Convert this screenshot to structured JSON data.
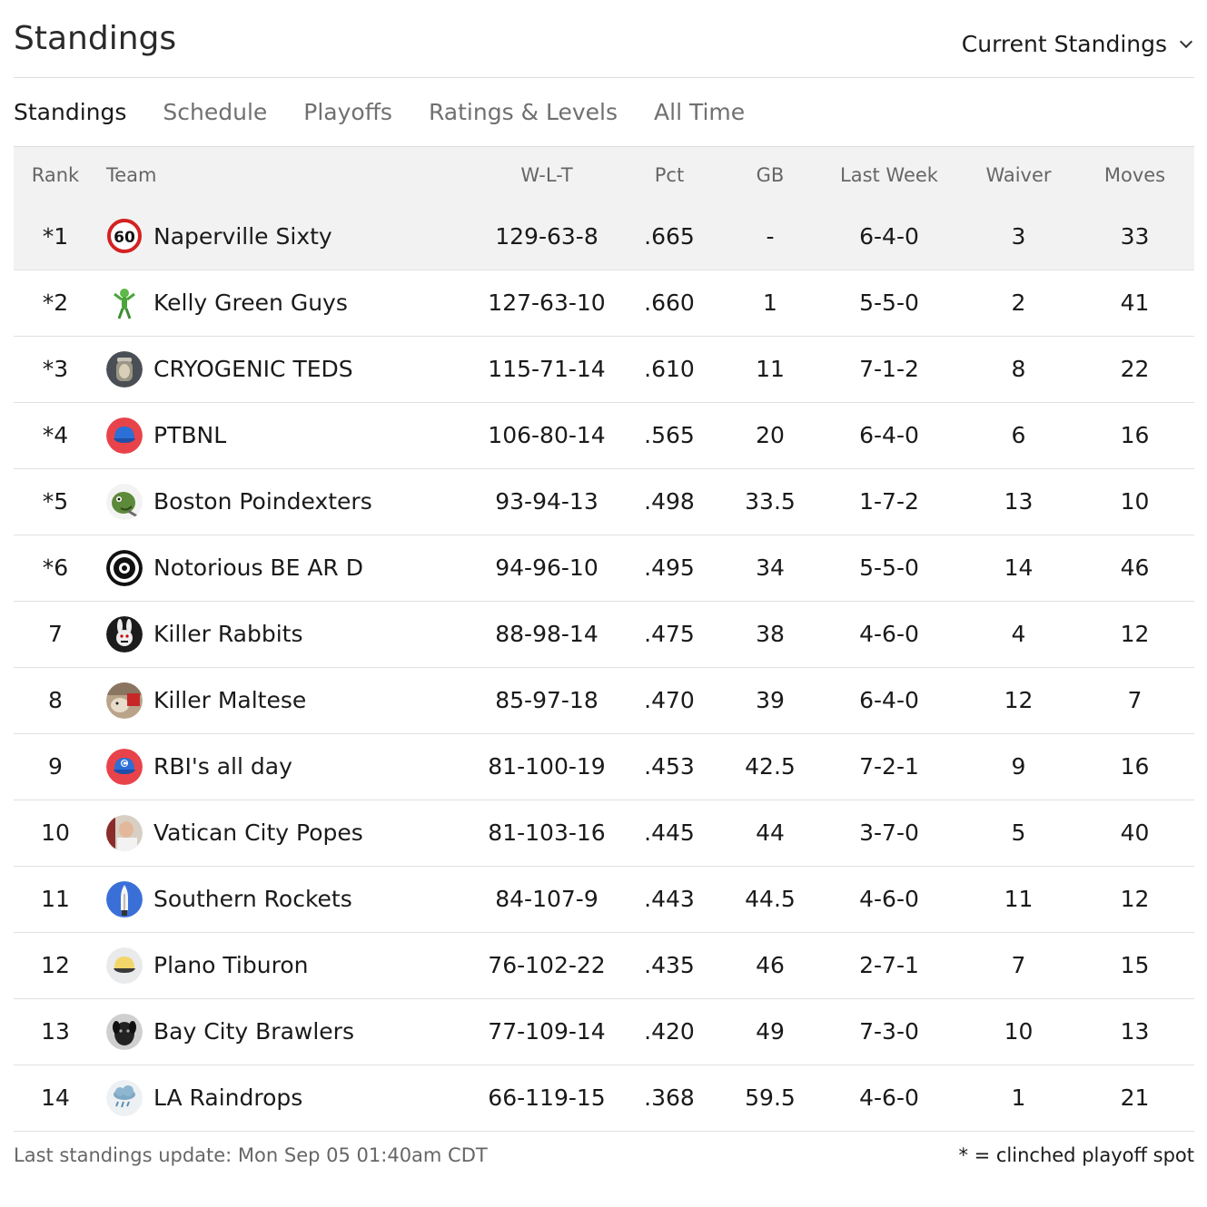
{
  "header": {
    "title": "Standings",
    "view_selector": "Current Standings"
  },
  "tabs": [
    {
      "label": "Standings",
      "active": true
    },
    {
      "label": "Schedule",
      "active": false
    },
    {
      "label": "Playoffs",
      "active": false
    },
    {
      "label": "Ratings & Levels",
      "active": false
    },
    {
      "label": "All Time",
      "active": false
    }
  ],
  "table": {
    "columns": {
      "rank": "Rank",
      "team": "Team",
      "wlt": "W-L-T",
      "pct": "Pct",
      "gb": "GB",
      "last_week": "Last Week",
      "waiver": "Waiver",
      "moves": "Moves"
    },
    "rows": [
      {
        "rank": "*1",
        "team": "Naperville Sixty",
        "logo_icon": "speed-limit-60-icon",
        "wlt": "129-63-8",
        "pct": ".665",
        "gb": "-",
        "last_week": "6-4-0",
        "waiver": "3",
        "moves": "33"
      },
      {
        "rank": "*2",
        "team": "Kelly Green Guys",
        "logo_icon": "green-alien-icon",
        "wlt": "127-63-10",
        "pct": ".660",
        "gb": "1",
        "last_week": "5-5-0",
        "waiver": "2",
        "moves": "41"
      },
      {
        "rank": "*3",
        "team": "CRYOGENIC TEDS",
        "logo_icon": "cryo-jar-icon",
        "wlt": "115-71-14",
        "pct": ".610",
        "gb": "11",
        "last_week": "7-1-2",
        "waiver": "8",
        "moves": "22"
      },
      {
        "rank": "*4",
        "team": "PTBNL",
        "logo_icon": "baseball-cap-icon",
        "wlt": "106-80-14",
        "pct": ".565",
        "gb": "20",
        "last_week": "6-4-0",
        "waiver": "6",
        "moves": "16"
      },
      {
        "rank": "*5",
        "team": "Boston Poindexters",
        "logo_icon": "green-creature-icon",
        "wlt": "93-94-13",
        "pct": ".498",
        "gb": "33.5",
        "last_week": "1-7-2",
        "waiver": "13",
        "moves": "10"
      },
      {
        "rank": "*6",
        "team": "Notorious BE AR D",
        "logo_icon": "badge-seal-icon",
        "wlt": "94-96-10",
        "pct": ".495",
        "gb": "34",
        "last_week": "5-5-0",
        "waiver": "14",
        "moves": "46"
      },
      {
        "rank": "7",
        "team": "Killer Rabbits",
        "logo_icon": "rabbit-icon",
        "wlt": "88-98-14",
        "pct": ".475",
        "gb": "38",
        "last_week": "4-6-0",
        "waiver": "4",
        "moves": "12"
      },
      {
        "rank": "8",
        "team": "Killer Maltese",
        "logo_icon": "dog-photo-icon",
        "wlt": "85-97-18",
        "pct": ".470",
        "gb": "39",
        "last_week": "6-4-0",
        "waiver": "12",
        "moves": "7"
      },
      {
        "rank": "9",
        "team": "RBI's all day",
        "logo_icon": "baseball-cap-c-icon",
        "wlt": "81-100-19",
        "pct": ".453",
        "gb": "42.5",
        "last_week": "7-2-1",
        "waiver": "9",
        "moves": "16"
      },
      {
        "rank": "10",
        "team": "Vatican City Popes",
        "logo_icon": "pope-photo-icon",
        "wlt": "81-103-16",
        "pct": ".445",
        "gb": "44",
        "last_week": "3-7-0",
        "waiver": "5",
        "moves": "40"
      },
      {
        "rank": "11",
        "team": "Southern Rockets",
        "logo_icon": "rocket-icon",
        "wlt": "84-107-9",
        "pct": ".443",
        "gb": "44.5",
        "last_week": "4-6-0",
        "waiver": "11",
        "moves": "12"
      },
      {
        "rank": "12",
        "team": "Plano Tiburon",
        "logo_icon": "yellow-cap-icon",
        "wlt": "76-102-22",
        "pct": ".435",
        "gb": "46",
        "last_week": "2-7-1",
        "waiver": "7",
        "moves": "15"
      },
      {
        "rank": "13",
        "team": "Bay City Brawlers",
        "logo_icon": "puppy-photo-icon",
        "wlt": "77-109-14",
        "pct": ".420",
        "gb": "49",
        "last_week": "7-3-0",
        "waiver": "10",
        "moves": "13"
      },
      {
        "rank": "14",
        "team": "LA Raindrops",
        "logo_icon": "rain-cloud-icon",
        "wlt": "66-119-15",
        "pct": ".368",
        "gb": "59.5",
        "last_week": "4-6-0",
        "waiver": "1",
        "moves": "21"
      }
    ]
  },
  "footer": {
    "last_update": "Last standings update: Mon Sep 05 01:40am CDT",
    "legend": "* = clinched playoff spot"
  },
  "colors": {
    "highlight_row": "#f2f2f2",
    "tab_inactive": "#707070",
    "tab_active": "#1a1a1a",
    "divider": "#dcdcdc"
  }
}
